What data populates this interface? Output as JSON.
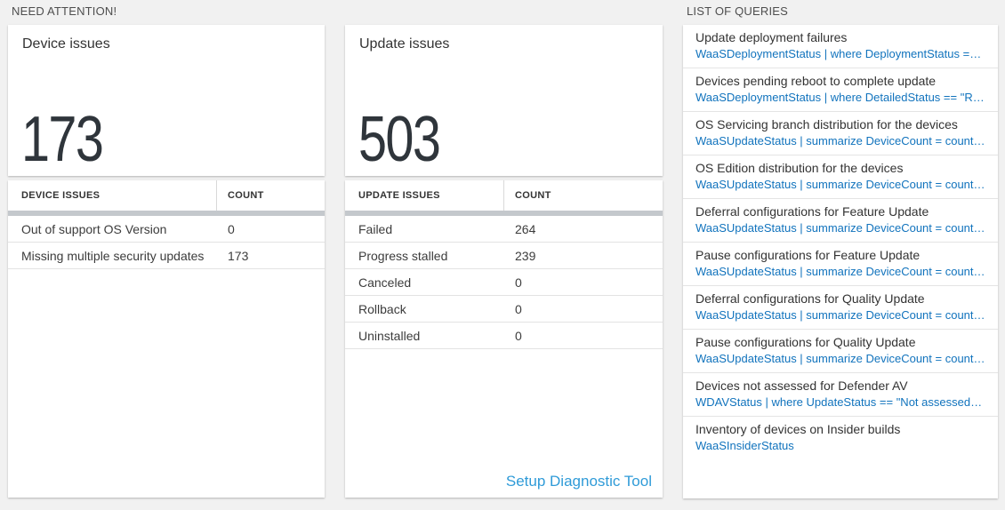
{
  "colors": {
    "background": "#f1f1f1",
    "query_text_blue": "#1173bd",
    "action_link_blue": "#2f9bd8",
    "big_number": "#2f353b",
    "table_header_bar": "#c4c8cc"
  },
  "need_attention": {
    "heading": "NEED ATTENTION!",
    "device_tile": {
      "title": "Device issues",
      "value": "173"
    },
    "device_table": {
      "col1_header": "DEVICE ISSUES",
      "col2_header": "COUNT",
      "rows": [
        {
          "label": "Out of support OS Version",
          "count": "0"
        },
        {
          "label": "Missing multiple security updates",
          "count": "173"
        }
      ]
    },
    "update_tile": {
      "title": "Update issues",
      "value": "503"
    },
    "update_table": {
      "col1_header": "UPDATE ISSUES",
      "col2_header": "COUNT",
      "rows": [
        {
          "label": "Failed",
          "count": "264"
        },
        {
          "label": "Progress stalled",
          "count": "239"
        },
        {
          "label": "Canceled",
          "count": "0"
        },
        {
          "label": "Rollback",
          "count": "0"
        },
        {
          "label": "Uninstalled",
          "count": "0"
        }
      ],
      "footer_link": "Setup Diagnostic Tool"
    }
  },
  "queries": {
    "heading": "LIST OF QUERIES",
    "items": [
      {
        "title": "Update deployment failures",
        "query": "WaaSDeploymentStatus | where DeploymentStatus == \"Failed\" |..."
      },
      {
        "title": "Devices pending reboot to complete update",
        "query": "WaaSDeploymentStatus | where DetailedStatus == \"Reboot pend..."
      },
      {
        "title": "OS Servicing branch distribution for the devices",
        "query": "WaaSUpdateStatus | summarize DeviceCount = count() by OSSer..."
      },
      {
        "title": "OS Edition distribution for the devices",
        "query": "WaaSUpdateStatus | summarize DeviceCount = count() by OSEdit..."
      },
      {
        "title": "Deferral configurations for Feature Update",
        "query": "WaaSUpdateStatus | summarize DeviceCount = count() by Featur..."
      },
      {
        "title": "Pause configurations for Feature Update",
        "query": "WaaSUpdateStatus | summarize DeviceCount = count() by Featur..."
      },
      {
        "title": "Deferral configurations for Quality Update",
        "query": "WaaSUpdateStatus | summarize DeviceCount = count() by Qualit..."
      },
      {
        "title": "Pause configurations for Quality Update",
        "query": "WaaSUpdateStatus | summarize DeviceCount = count() by Qualit..."
      },
      {
        "title": "Devices not assessed for Defender AV",
        "query": "WDAVStatus | where UpdateStatus == \"Not assessed\" | render ta..."
      },
      {
        "title": "Inventory of devices on Insider builds",
        "query": "WaaSInsiderStatus"
      }
    ]
  }
}
